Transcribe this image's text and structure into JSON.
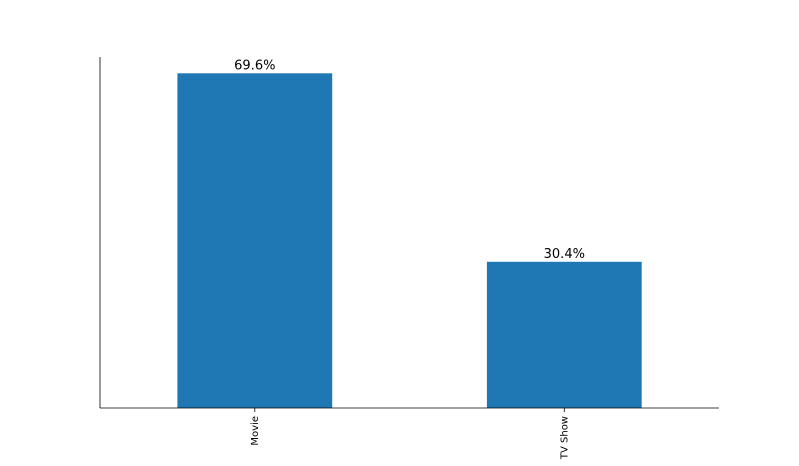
{
  "chart_data": {
    "type": "bar",
    "categories": [
      "Movie",
      "TV Show"
    ],
    "values": [
      69.6,
      30.4
    ],
    "value_labels": [
      "69.6%",
      "30.4%"
    ],
    "ylim": [
      0,
      73
    ],
    "grid": false,
    "bar_color": "#1f77b4",
    "axis_color": "#000000",
    "x_tick_label_rotation": "vertical"
  }
}
